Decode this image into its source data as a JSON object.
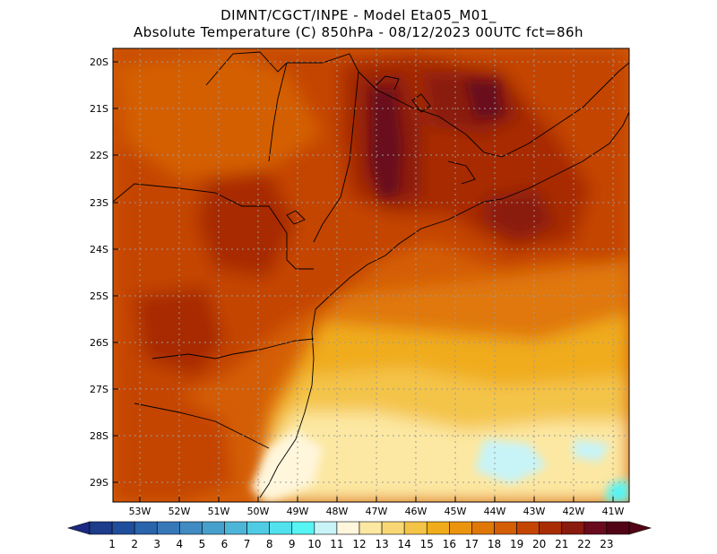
{
  "header": {
    "line1": "DIMNT/CGCT/INPE -  Model Eta05_M01_",
    "line2": "Absolute Temperature (C) 850hPa -  08/12/2023 00UTC fct=86h"
  },
  "map": {
    "lat_labels": [
      "20S",
      "21S",
      "22S",
      "23S",
      "24S",
      "25S",
      "26S",
      "27S",
      "28S",
      "29S"
    ],
    "lon_labels": [
      "53W",
      "52W",
      "51W",
      "50W",
      "49W",
      "48W",
      "47W",
      "46W",
      "45W",
      "44W",
      "43W",
      "42W",
      "41W"
    ]
  },
  "colorbar": {
    "labels": [
      "1",
      "2",
      "3",
      "4",
      "5",
      "6",
      "7",
      "8",
      "9",
      "10",
      "11",
      "12",
      "13",
      "14",
      "15",
      "16",
      "17",
      "18",
      "19",
      "20",
      "21",
      "22",
      "23"
    ],
    "colors": [
      "#1e3c8c",
      "#1f4f9c",
      "#2a64ac",
      "#3778b8",
      "#3f8bc2",
      "#46a0cc",
      "#4db6d8",
      "#4fcce4",
      "#52e2ee",
      "#56f4f4",
      "#c8f4f8",
      "#fff6dc",
      "#fce8a2",
      "#f8d874",
      "#f4c448",
      "#f0ac1a",
      "#ec9410",
      "#e07808",
      "#d45e06",
      "#c44404",
      "#a82c04",
      "#8a1a0e",
      "#6a0a1e",
      "#520416"
    ],
    "low_color": "#1a2a80",
    "high_color": "#520416"
  }
}
